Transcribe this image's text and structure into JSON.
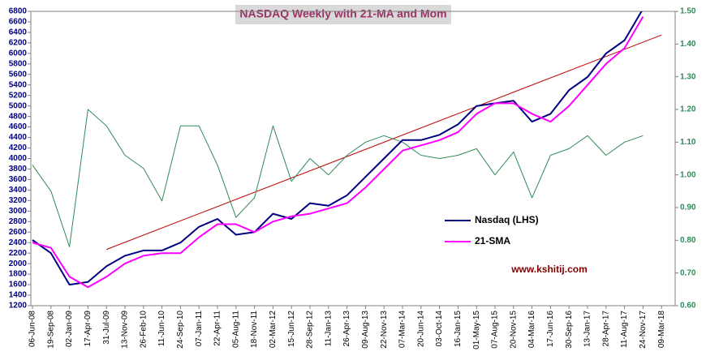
{
  "chart_data": {
    "type": "line",
    "title": "NASDAQ Weekly with 21-MA and Mom",
    "watermark": "www.kshitij.com",
    "categories": [
      "06-Jun-08",
      "19-Sep-08",
      "02-Jan-09",
      "17-Apr-09",
      "31-Jul-09",
      "13-Nov-09",
      "26-Feb-10",
      "11-Jun-10",
      "24-Sep-10",
      "07-Jan-11",
      "22-Apr-11",
      "05-Aug-11",
      "18-Nov-11",
      "02-Mar-12",
      "15-Jun-12",
      "28-Sep-12",
      "11-Jan-13",
      "26-Apr-13",
      "09-Aug-13",
      "22-Nov-13",
      "07-Mar-14",
      "20-Jun-14",
      "03-Oct-14",
      "16-Jan-15",
      "01-May-15",
      "07-Aug-15",
      "20-Nov-15",
      "04-Mar-16",
      "17-Jun-16",
      "30-Sep-16",
      "13-Jan-17",
      "28-Apr-17",
      "11-Aug-17",
      "24-Nov-17",
      "09-Mar-18"
    ],
    "series": [
      {
        "name": "Nasdaq (LHS)",
        "color": "#000080",
        "values": [
          2450,
          2200,
          1600,
          1650,
          1950,
          2150,
          2250,
          2250,
          2400,
          2700,
          2850,
          2550,
          2600,
          2950,
          2850,
          3150,
          3100,
          3300,
          3650,
          4000,
          4350,
          4350,
          4450,
          4650,
          5000,
          5050,
          5100,
          4700,
          4850,
          5300,
          5550,
          6000,
          6250,
          6850,
          null
        ]
      },
      {
        "name": "21-SMA",
        "color": "#ff00ff",
        "values": [
          2400,
          2300,
          1750,
          1550,
          1750,
          2000,
          2150,
          2200,
          2200,
          2500,
          2750,
          2750,
          2600,
          2800,
          2900,
          2950,
          3050,
          3150,
          3450,
          3800,
          4150,
          4250,
          4350,
          4500,
          4850,
          5050,
          5050,
          4850,
          4700,
          5000,
          5400,
          5800,
          6100,
          6700,
          null
        ]
      },
      {
        "color": "#2e8b57",
        "axis": "y2",
        "values": [
          1.03,
          0.95,
          0.78,
          1.2,
          1.15,
          1.06,
          1.02,
          0.92,
          1.15,
          1.15,
          1.03,
          0.87,
          0.93,
          1.15,
          0.98,
          1.05,
          1.0,
          1.06,
          1.1,
          1.12,
          1.1,
          1.06,
          1.05,
          1.06,
          1.08,
          1.0,
          1.07,
          0.93,
          1.06,
          1.08,
          1.12,
          1.06,
          1.1,
          1.12,
          null
        ]
      }
    ],
    "trendline": {
      "color": "#c00000",
      "from": "31-Jul-09",
      "to": "09-Mar-18",
      "values": [
        2270,
        6350
      ]
    },
    "ylim": [
      1200,
      6800
    ],
    "yticks": [
      1200,
      1400,
      1600,
      1800,
      2000,
      2200,
      2400,
      2600,
      2800,
      3000,
      3200,
      3400,
      3600,
      3800,
      4000,
      4200,
      4400,
      4600,
      4800,
      5000,
      5200,
      5400,
      5600,
      5800,
      6000,
      6200,
      6400,
      6600,
      6800
    ],
    "y2lim": [
      0.6,
      1.5
    ],
    "y2ticks": [
      {
        "value": 0.6,
        "label": "0.60"
      },
      {
        "value": 0.7,
        "label": "0.70"
      },
      {
        "value": 0.8,
        "label": "0.80"
      },
      {
        "value": 0.9,
        "label": "0.90"
      },
      {
        "value": 1.0,
        "label": "1.00"
      },
      {
        "value": 1.1,
        "label": "1.10"
      },
      {
        "value": 1.2,
        "label": "1.20"
      },
      {
        "value": 1.3,
        "label": "1.30"
      },
      {
        "value": 1.4,
        "label": "1.40"
      },
      {
        "value": 1.5,
        "label": "1.50"
      }
    ]
  }
}
